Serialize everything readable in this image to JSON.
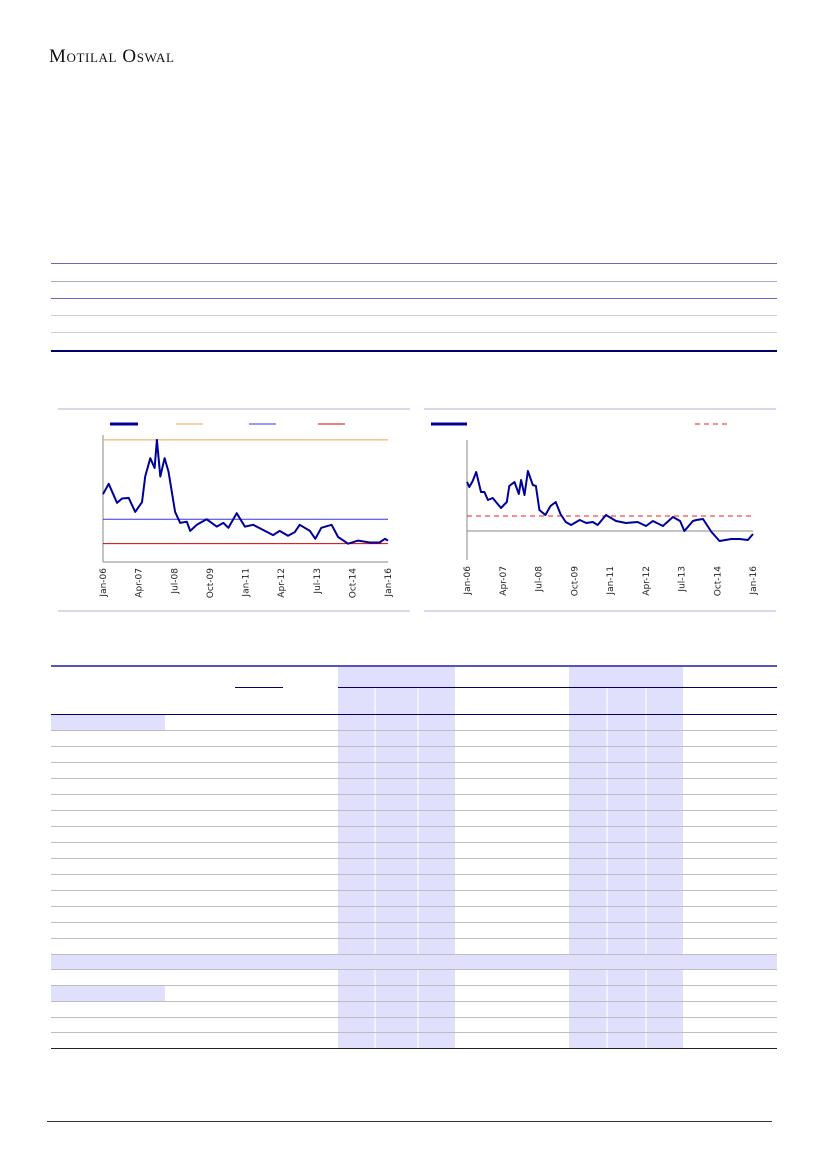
{
  "header": {
    "brand": "Motilal Oswal"
  },
  "colors": {
    "series": "#000099",
    "max": "#f0a050",
    "avg": "#3333ff",
    "min": "#dd0000",
    "dashed": "#ee2222",
    "shade": "#e0e0fc",
    "rule": "#000066"
  },
  "chart_data": [
    {
      "type": "line",
      "title": "",
      "xlabel": "",
      "ylabel": "",
      "xticks": [
        "Jan-06",
        "Apr-07",
        "Jul-08",
        "Oct-09",
        "Jan-11",
        "Apr-12",
        "Jul-13",
        "Oct-14",
        "Jan-16"
      ],
      "xlim": [
        2006,
        2016
      ],
      "ylim": [
        0,
        104
      ],
      "grid": false,
      "legend": "top",
      "series": [
        {
          "name": "",
          "x": [
            2006.0,
            2006.2,
            2006.49,
            2006.67,
            2006.9,
            2007.13,
            2007.37,
            2007.48,
            2007.66,
            2007.81,
            2007.89,
            2008.01,
            2008.16,
            2008.3,
            2008.53,
            2008.71,
            2008.94,
            2009.06,
            2009.29,
            2009.64,
            2009.99,
            2010.22,
            2010.4,
            2010.69,
            2010.98,
            2011.27,
            2011.68,
            2011.97,
            2012.2,
            2012.49,
            2012.73,
            2012.9,
            2013.26,
            2013.45,
            2013.66,
            2014.02,
            2014.25,
            2014.6,
            2014.95,
            2015.36,
            2015.71,
            2015.89,
            2016.0
          ],
          "y": [
            55.5,
            64,
            48.5,
            52,
            52.5,
            41,
            49,
            70,
            85,
            77,
            100,
            70,
            85,
            74,
            41,
            32,
            33,
            25.5,
            30.5,
            35,
            29,
            32,
            28,
            40,
            29,
            30.5,
            25.5,
            22,
            25.5,
            21.5,
            24.5,
            30.5,
            25.5,
            19,
            28,
            30.5,
            20.5,
            15,
            17.5,
            16,
            16,
            19,
            17.5
          ]
        }
      ],
      "reference_lines": [
        {
          "name": "max",
          "y": 100
        },
        {
          "name": "average",
          "y": 35
        },
        {
          "name": "min",
          "y": 15
        }
      ]
    },
    {
      "type": "line",
      "title": "",
      "xlabel": "",
      "ylabel": "",
      "xticks": [
        "Jan-06",
        "Apr-07",
        "Jul-08",
        "Oct-09",
        "Jan-11",
        "Apr-12",
        "Jul-13",
        "Oct-14",
        "Jan-16"
      ],
      "xlim": [
        2006,
        2016
      ],
      "ylim": [
        -2.9,
        9.1
      ],
      "grid": false,
      "legend": "top",
      "series": [
        {
          "name": "",
          "x": [
            2006.0,
            2006.08,
            2006.2,
            2006.32,
            2006.49,
            2006.61,
            2006.73,
            2006.9,
            2007.19,
            2007.39,
            2007.48,
            2007.66,
            2007.81,
            2007.89,
            2008.01,
            2008.13,
            2008.3,
            2008.41,
            2008.53,
            2008.74,
            2008.92,
            2009.1,
            2009.27,
            2009.45,
            2009.64,
            2009.94,
            2010.17,
            2010.4,
            2010.57,
            2010.86,
            2011.21,
            2011.56,
            2011.97,
            2012.26,
            2012.5,
            2012.85,
            2013.2,
            2013.45,
            2013.6,
            2013.9,
            2014.02,
            2014.25,
            2014.55,
            2014.83,
            2015.24,
            2015.53,
            2015.82,
            2016.0
          ],
          "y": [
            4.9,
            4.4,
            5.0,
            5.9,
            3.9,
            3.9,
            3.1,
            3.3,
            2.3,
            2.9,
            4.5,
            4.9,
            3.7,
            5.1,
            3.6,
            6.0,
            4.6,
            4.5,
            2.1,
            1.6,
            2.5,
            2.9,
            1.7,
            0.9,
            0.6,
            1.1,
            0.8,
            0.9,
            0.6,
            1.6,
            1.0,
            0.8,
            0.9,
            0.5,
            1.0,
            0.5,
            1.4,
            1.0,
            0.0,
            1.0,
            1.1,
            1.2,
            -0.1,
            -1.0,
            -0.8,
            -0.8,
            -0.9,
            -0.3
          ]
        }
      ],
      "reference_lines": [
        {
          "name": "zero",
          "y": 0
        },
        {
          "name": "average-dashed",
          "y": 1.5
        }
      ]
    }
  ]
}
